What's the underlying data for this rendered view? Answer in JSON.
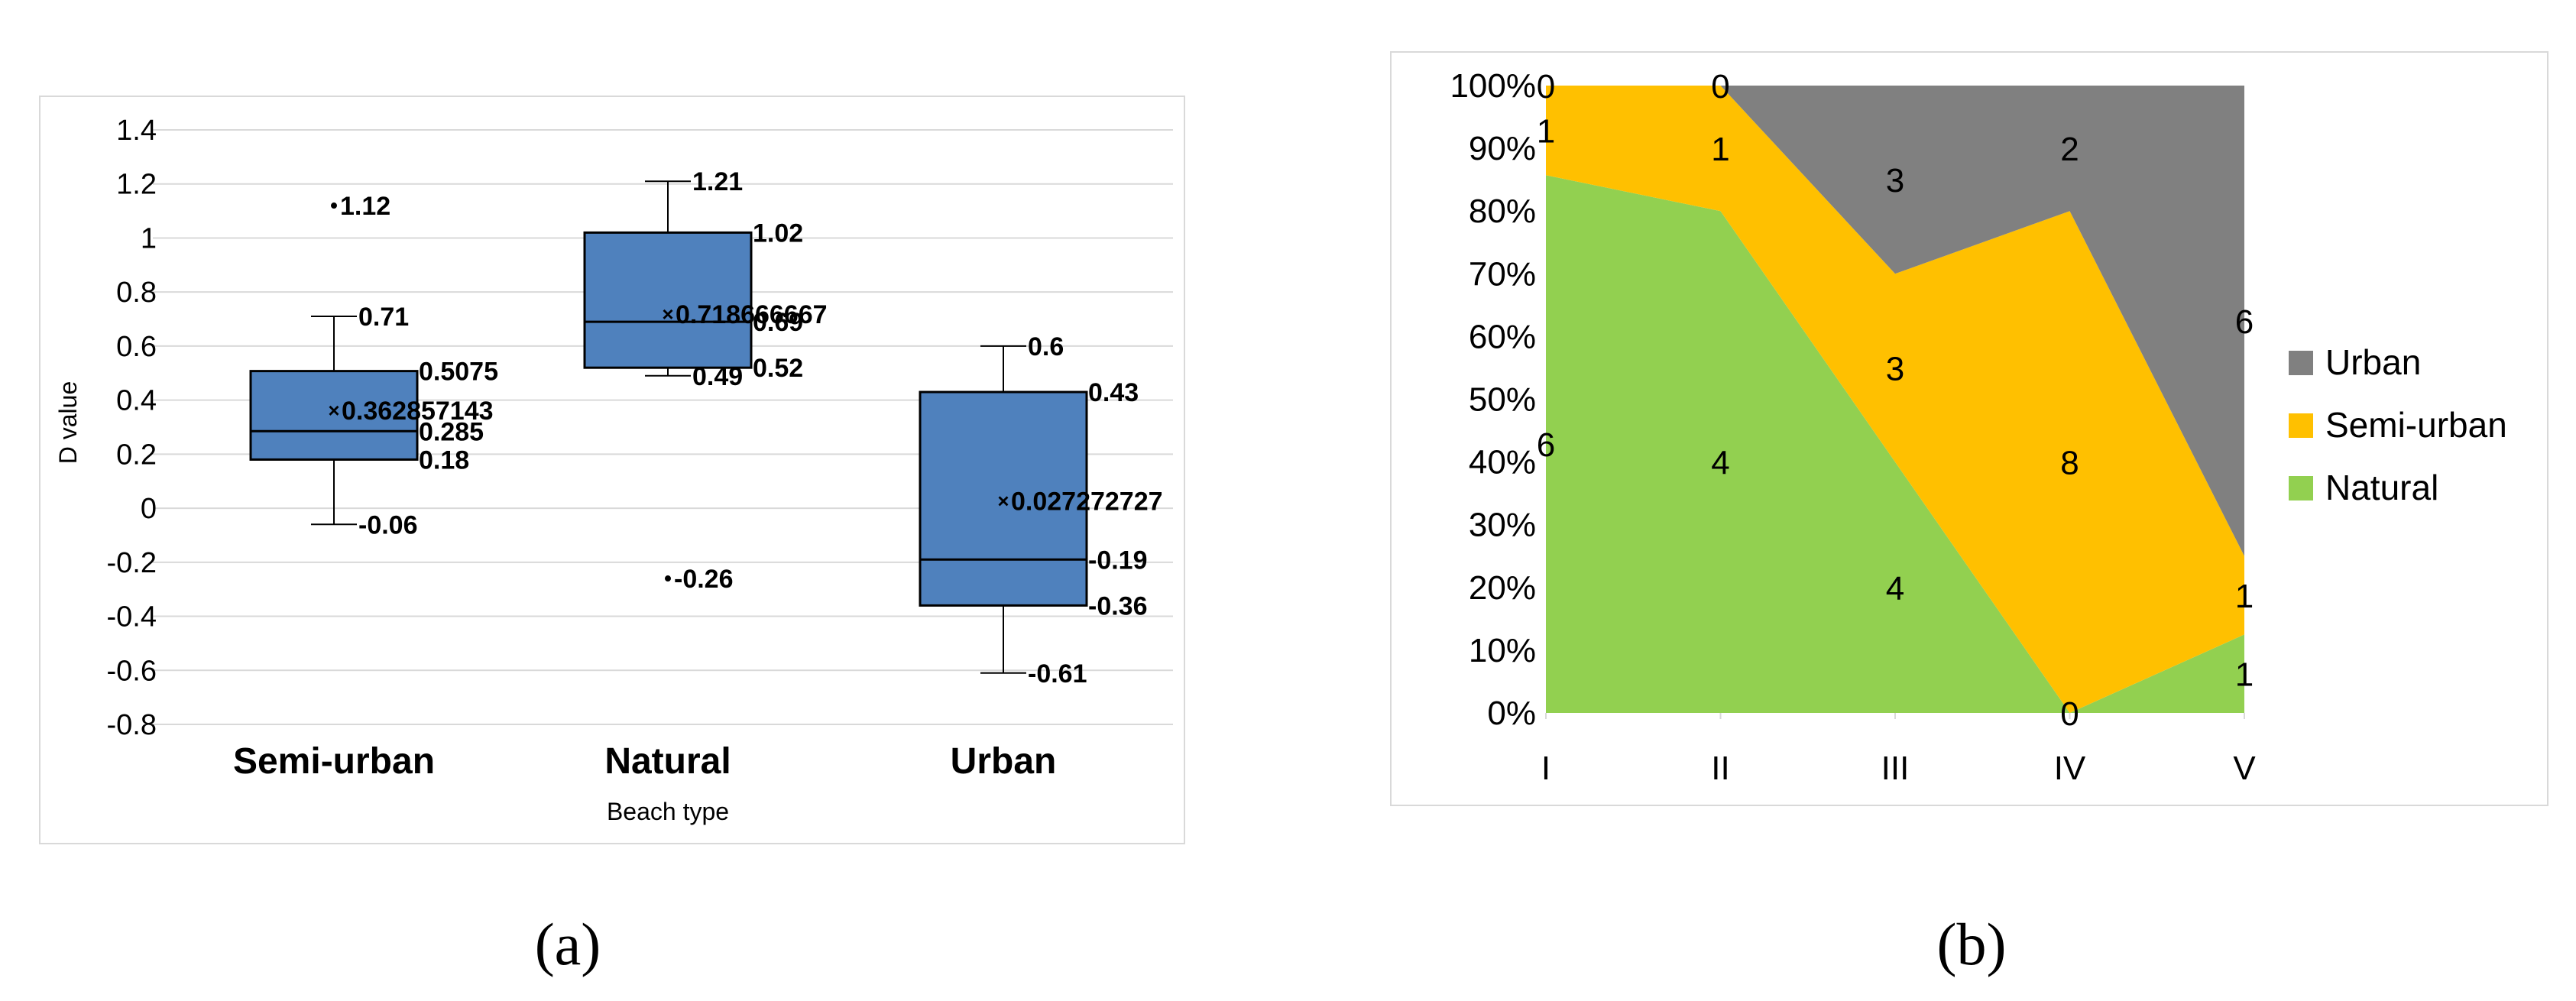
{
  "panels": [
    {
      "label": "(a)"
    },
    {
      "label": "(b)"
    }
  ],
  "colors": {
    "box_fill": "#4f81bd",
    "urban": "#808080",
    "semi_urban": "#ffc000",
    "natural": "#92d050",
    "grid": "#d9d9d9"
  },
  "chart_data": [
    {
      "type": "box",
      "title": "",
      "xlabel": "Beach type",
      "ylabel": "D value",
      "ylim": [
        -0.8,
        1.4
      ],
      "yticks": [
        "1.4",
        "1.2",
        "1",
        "0.8",
        "0.6",
        "0.4",
        "0.2",
        "0",
        "-0.2",
        "-0.4",
        "-0.6",
        "-0.8"
      ],
      "ytick_values": [
        1.4,
        1.2,
        1.0,
        0.8,
        0.6,
        0.4,
        0.2,
        0,
        -0.2,
        -0.4,
        -0.6,
        -0.8
      ],
      "grid": true,
      "categories": [
        "Semi-urban",
        "Natural",
        "Urban"
      ],
      "boxes": [
        {
          "category": "Semi-urban",
          "whisker_low": -0.06,
          "q1": 0.18,
          "median": 0.285,
          "q3": 0.5075,
          "whisker_high": 0.71,
          "mean": 0.362857143,
          "outliers": [
            1.12
          ],
          "labels": {
            "whisker_high": "0.71",
            "q3": "0.5075",
            "mean": "0.362857143",
            "median": "0.285",
            "q1": "0.18",
            "whisker_low": "-0.06",
            "outliers": [
              "1.12"
            ]
          }
        },
        {
          "category": "Natural",
          "whisker_low": 0.49,
          "q1": 0.52,
          "median": 0.69,
          "q3": 1.02,
          "whisker_high": 1.21,
          "mean": 0.718666667,
          "outliers": [
            -0.26
          ],
          "labels": {
            "whisker_high": "1.21",
            "q3": "1.02",
            "mean": "0.718666667",
            "median": "0.69",
            "q1": "0.52",
            "whisker_low": "0.49",
            "outliers": [
              "-0.26"
            ]
          }
        },
        {
          "category": "Urban",
          "whisker_low": -0.61,
          "q1": -0.36,
          "median": -0.19,
          "q3": 0.43,
          "whisker_high": 0.6,
          "mean": 0.027272727,
          "outliers": [],
          "labels": {
            "whisker_high": "0.6",
            "q3": "0.43",
            "mean": "0.027272727",
            "median": "-0.19",
            "q1": "-0.36",
            "whisker_low": "-0.61",
            "outliers": []
          }
        }
      ]
    },
    {
      "type": "area",
      "stacked": "percent",
      "title": "",
      "xlabel": "",
      "ylabel": "",
      "ylim": [
        0,
        100
      ],
      "yticks": [
        "100%",
        "90%",
        "80%",
        "70%",
        "60%",
        "50%",
        "40%",
        "30%",
        "20%",
        "10%",
        "0%"
      ],
      "ytick_values": [
        100,
        90,
        80,
        70,
        60,
        50,
        40,
        30,
        20,
        10,
        0
      ],
      "grid": false,
      "legend_position": "right",
      "categories": [
        "I",
        "II",
        "III",
        "IV",
        "V"
      ],
      "series": [
        {
          "name": "Natural",
          "values": [
            6,
            4,
            4,
            0,
            1
          ]
        },
        {
          "name": "Semi-urban",
          "values": [
            1,
            1,
            3,
            8,
            1
          ]
        },
        {
          "name": "Urban",
          "values": [
            0,
            0,
            3,
            2,
            6
          ]
        }
      ],
      "legend": [
        "Urban",
        "Semi-urban",
        "Natural"
      ]
    }
  ]
}
